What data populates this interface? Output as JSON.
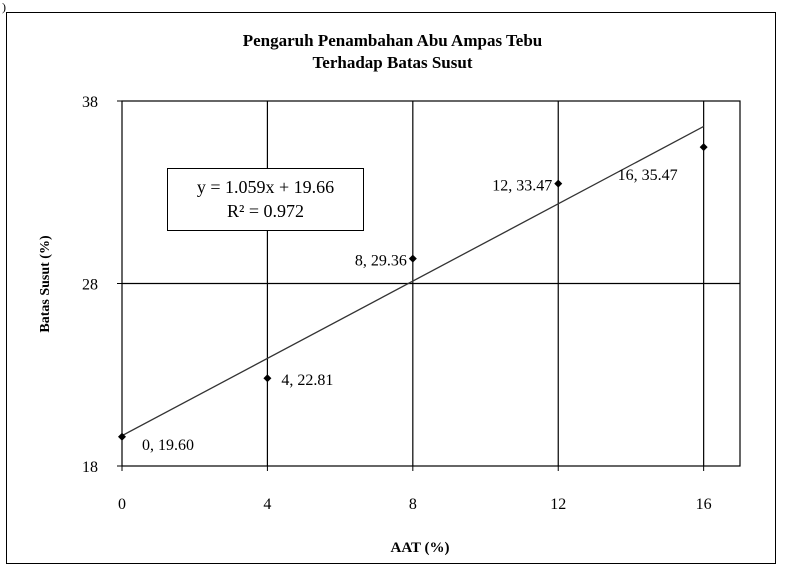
{
  "corner_mark": ")",
  "chart_data": {
    "type": "scatter",
    "title": "Pengaruh Penambahan Abu Ampas Tebu",
    "subtitle": "Terhadap Batas Susut",
    "xlabel": "AAT (%)",
    "ylabel": "Batas Susut (%)",
    "xlim": [
      0,
      17
    ],
    "ylim": [
      18,
      38
    ],
    "xticks": [
      0,
      4,
      8,
      12,
      16
    ],
    "yticks": [
      18,
      28,
      38
    ],
    "x_gridlines": [
      4,
      8,
      12,
      16
    ],
    "y_gridlines": [
      28
    ],
    "grid": true,
    "points": [
      {
        "x": 0,
        "y": 19.6,
        "label": "0, 19.60"
      },
      {
        "x": 4,
        "y": 22.81,
        "label": "4, 22.81"
      },
      {
        "x": 8,
        "y": 29.36,
        "label": "8, 29.36"
      },
      {
        "x": 12,
        "y": 33.47,
        "label": "12, 33.47"
      },
      {
        "x": 16,
        "y": 35.47,
        "label": "16, 35.47"
      }
    ],
    "trendline": {
      "slope": 1.059,
      "intercept": 19.66,
      "equation": "y = 1.059x + 19.66",
      "r_squared": "R² = 0.972"
    }
  }
}
